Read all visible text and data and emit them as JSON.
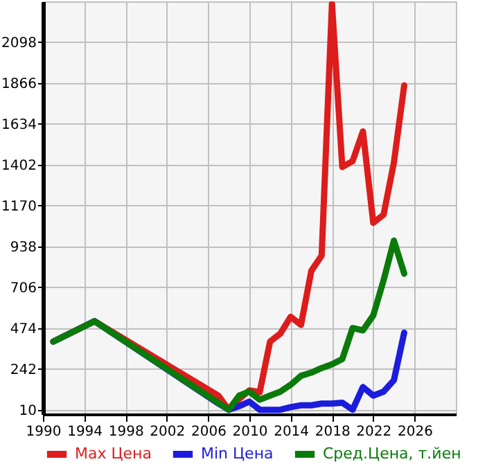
{
  "chart_data": {
    "type": "line",
    "x": [
      1991,
      1995,
      2007,
      2008,
      2009,
      2010,
      2011,
      2012,
      2013,
      2014,
      2015,
      2016,
      2017,
      2018,
      2019,
      2020,
      2021,
      2022,
      2023,
      2024,
      2025
    ],
    "series": [
      {
        "name": "Max Цена",
        "color": "#dd1c1c",
        "values": [
          397,
          513,
          90,
          10,
          70,
          120,
          110,
          397,
          443,
          538,
          492,
          799,
          886,
          2317,
          1389,
          1423,
          1591,
          1072,
          1118,
          1415,
          1853
        ]
      },
      {
        "name": "Min Цена",
        "color": "#1c1cdd",
        "values": [
          397,
          513,
          45,
          10,
          30,
          56,
          10,
          10,
          10,
          25,
          35,
          35,
          45,
          45,
          50,
          10,
          139,
          90,
          113,
          178,
          448
        ]
      },
      {
        "name": "Сред.Цена, т.йен",
        "color": "#0a7a0a",
        "values": [
          397,
          513,
          49,
          10,
          90,
          113,
          67,
          90,
          113,
          152,
          203,
          221,
          247,
          268,
          298,
          474,
          461,
          546,
          745,
          971,
          783
        ]
      }
    ],
    "xlim": [
      1990,
      2030
    ],
    "xticks": [
      1990,
      1994,
      1998,
      2002,
      2006,
      2010,
      2014,
      2018,
      2022,
      2026
    ],
    "ylim": [
      -15,
      2330
    ],
    "yticks": [
      10,
      242,
      474,
      706,
      938,
      1170,
      1402,
      1634,
      1866,
      2098
    ],
    "grid": true,
    "legend": "bottom",
    "marker": "none",
    "line_style": "solid"
  }
}
